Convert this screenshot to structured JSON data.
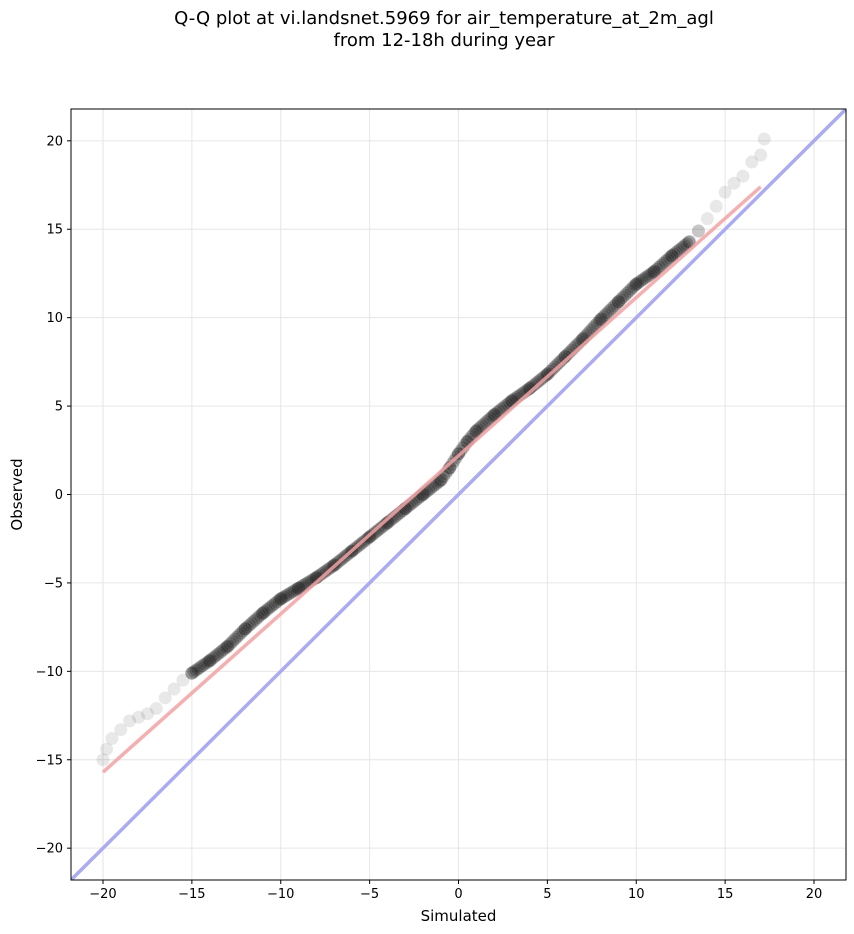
{
  "chart_data": {
    "type": "scatter",
    "title_line1": "Q-Q plot at vi.landsnet.5969 for air_temperature_at_2m_agl",
    "title_line2": "from 12-18h during year",
    "xlabel": "Simulated",
    "ylabel": "Observed",
    "xlim": [
      -21.8,
      21.8
    ],
    "ylim": [
      -21.8,
      21.8
    ],
    "x_ticks": [
      -20,
      -15,
      -10,
      -5,
      0,
      5,
      10,
      15,
      20
    ],
    "y_ticks": [
      -20,
      -15,
      -10,
      -5,
      0,
      5,
      10,
      15,
      20
    ],
    "x_tick_labels": [
      "−20",
      "−15",
      "−10",
      "−5",
      "0",
      "5",
      "10",
      "15",
      "20"
    ],
    "y_tick_labels": [
      "−20",
      "−15",
      "−10",
      "−5",
      "0",
      "5",
      "10",
      "15",
      "20"
    ],
    "grid": true,
    "series": [
      {
        "kind": "quantile_points",
        "color": "#000000",
        "x": [
          -20.0,
          -19.8,
          -19.5,
          -19.0,
          -18.5,
          -18.0,
          -17.5,
          -17.0,
          -16.5,
          -16.0,
          -15.5,
          -15.0,
          -14.0,
          -13.0,
          -12.0,
          -11.0,
          -10.0,
          -9.0,
          -8.0,
          -7.0,
          -6.0,
          -5.0,
          -4.0,
          -3.0,
          -2.0,
          -1.0,
          -0.5,
          0.0,
          0.5,
          1.0,
          2.0,
          3.0,
          4.0,
          5.0,
          6.0,
          7.0,
          8.0,
          9.0,
          10.0,
          11.0,
          12.0,
          13.0,
          13.5,
          14.0,
          14.5,
          15.0,
          15.5,
          16.0,
          16.5,
          17.0,
          17.2
        ],
        "y": [
          -15.0,
          -14.4,
          -13.8,
          -13.3,
          -12.8,
          -12.6,
          -12.4,
          -12.1,
          -11.5,
          -11.0,
          -10.5,
          -10.1,
          -9.4,
          -8.6,
          -7.6,
          -6.7,
          -5.9,
          -5.3,
          -4.7,
          -4.0,
          -3.2,
          -2.4,
          -1.6,
          -0.8,
          0.0,
          0.8,
          1.5,
          2.3,
          3.0,
          3.6,
          4.5,
          5.3,
          6.0,
          6.8,
          7.8,
          8.8,
          9.9,
          10.9,
          11.9,
          12.6,
          13.5,
          14.3,
          14.9,
          15.6,
          16.3,
          17.1,
          17.6,
          18.0,
          18.8,
          19.2,
          20.1
        ]
      },
      {
        "kind": "fit_line",
        "color": "#f4a0a0",
        "x": [
          -20.0,
          17.0
        ],
        "y": [
          -15.7,
          17.4
        ]
      },
      {
        "kind": "identity_line",
        "color": "#aaaaf5",
        "x": [
          -22,
          22
        ],
        "y": [
          -22,
          22
        ]
      }
    ]
  }
}
